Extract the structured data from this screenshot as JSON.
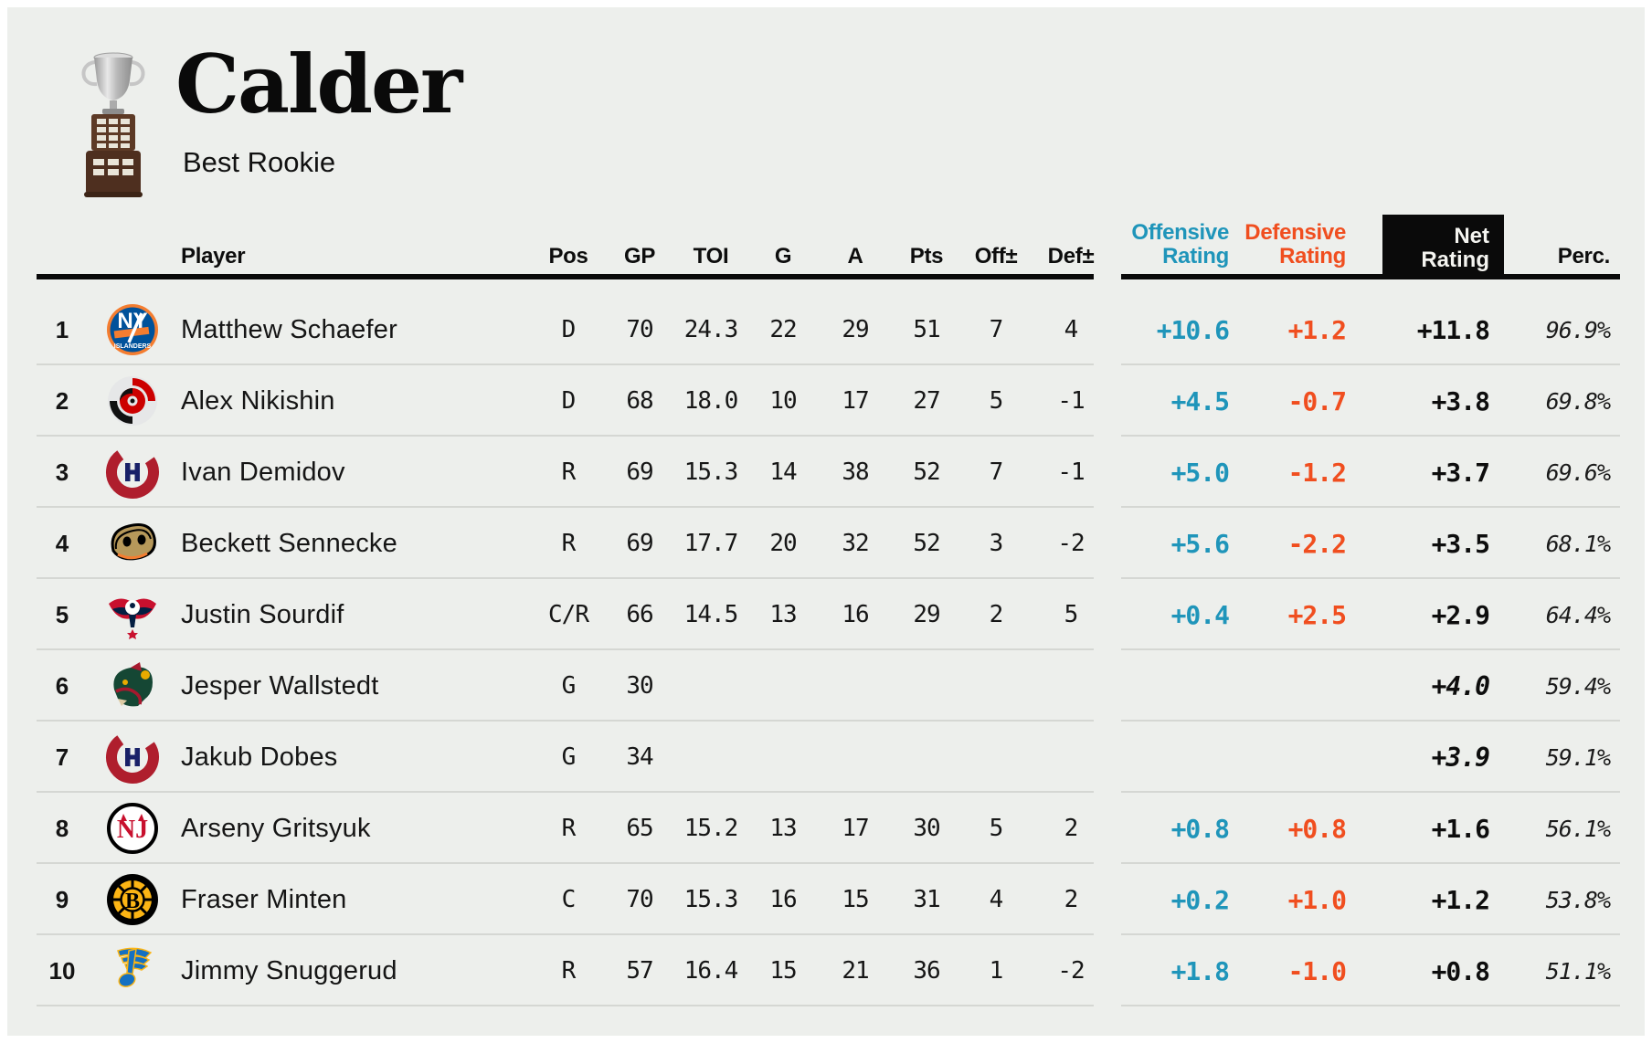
{
  "colors": {
    "background": "#edefec",
    "offensive_accent": "#1f95ba",
    "defensive_accent": "#f04e1f",
    "net_box_background": "#000000",
    "net_box_text": "#ffffff",
    "separator_line": "#d5d7d3"
  },
  "chart_data": {
    "type": "table",
    "title": "Calder",
    "subtitle": "Best Rookie",
    "trophy_icon": "calder-trophy-icon",
    "columns": [
      "Player",
      "Pos",
      "GP",
      "TOI",
      "G",
      "A",
      "Pts",
      "Off±",
      "Def±",
      "Offensive Rating",
      "Defensive Rating",
      "Net Rating",
      "Perc."
    ],
    "rows": [
      {
        "rank": "1",
        "team": "NYI",
        "player": "Matthew Schaefer",
        "pos": "D",
        "gp": "70",
        "toi": "24.3",
        "g": "22",
        "a": "29",
        "pts": "51",
        "off_pm": "7",
        "def_pm": "4",
        "off_rating": "+10.6",
        "def_rating": "+1.2",
        "net_rating": "+11.8",
        "perc": "96.9%",
        "goalie": false
      },
      {
        "rank": "2",
        "team": "CAR",
        "player": "Alex Nikishin",
        "pos": "D",
        "gp": "68",
        "toi": "18.0",
        "g": "10",
        "a": "17",
        "pts": "27",
        "off_pm": "5",
        "def_pm": "-1",
        "off_rating": "+4.5",
        "def_rating": "-0.7",
        "net_rating": "+3.8",
        "perc": "69.8%",
        "goalie": false
      },
      {
        "rank": "3",
        "team": "MTL",
        "player": "Ivan Demidov",
        "pos": "R",
        "gp": "69",
        "toi": "15.3",
        "g": "14",
        "a": "38",
        "pts": "52",
        "off_pm": "7",
        "def_pm": "-1",
        "off_rating": "+5.0",
        "def_rating": "-1.2",
        "net_rating": "+3.7",
        "perc": "69.6%",
        "goalie": false
      },
      {
        "rank": "4",
        "team": "ANA",
        "player": "Beckett Sennecke",
        "pos": "R",
        "gp": "69",
        "toi": "17.7",
        "g": "20",
        "a": "32",
        "pts": "52",
        "off_pm": "3",
        "def_pm": "-2",
        "off_rating": "+5.6",
        "def_rating": "-2.2",
        "net_rating": "+3.5",
        "perc": "68.1%",
        "goalie": false
      },
      {
        "rank": "5",
        "team": "WSH",
        "player": "Justin Sourdif",
        "pos": "C/R",
        "gp": "66",
        "toi": "14.5",
        "g": "13",
        "a": "16",
        "pts": "29",
        "off_pm": "2",
        "def_pm": "5",
        "off_rating": "+0.4",
        "def_rating": "+2.5",
        "net_rating": "+2.9",
        "perc": "64.4%",
        "goalie": false
      },
      {
        "rank": "6",
        "team": "MIN",
        "player": "Jesper Wallstedt",
        "pos": "G",
        "gp": "30",
        "toi": "",
        "g": "",
        "a": "",
        "pts": "",
        "off_pm": "",
        "def_pm": "",
        "off_rating": "",
        "def_rating": "",
        "net_rating": "+4.0",
        "perc": "59.4%",
        "goalie": true
      },
      {
        "rank": "7",
        "team": "MTL",
        "player": "Jakub Dobes",
        "pos": "G",
        "gp": "34",
        "toi": "",
        "g": "",
        "a": "",
        "pts": "",
        "off_pm": "",
        "def_pm": "",
        "off_rating": "",
        "def_rating": "",
        "net_rating": "+3.9",
        "perc": "59.1%",
        "goalie": true
      },
      {
        "rank": "8",
        "team": "NJD",
        "player": "Arseny Gritsyuk",
        "pos": "R",
        "gp": "65",
        "toi": "15.2",
        "g": "13",
        "a": "17",
        "pts": "30",
        "off_pm": "5",
        "def_pm": "2",
        "off_rating": "+0.8",
        "def_rating": "+0.8",
        "net_rating": "+1.6",
        "perc": "56.1%",
        "goalie": false
      },
      {
        "rank": "9",
        "team": "BOS",
        "player": "Fraser Minten",
        "pos": "C",
        "gp": "70",
        "toi": "15.3",
        "g": "16",
        "a": "15",
        "pts": "31",
        "off_pm": "4",
        "def_pm": "2",
        "off_rating": "+0.2",
        "def_rating": "+1.0",
        "net_rating": "+1.2",
        "perc": "53.8%",
        "goalie": false
      },
      {
        "rank": "10",
        "team": "STL",
        "player": "Jimmy Snuggerud",
        "pos": "R",
        "gp": "57",
        "toi": "16.4",
        "g": "15",
        "a": "21",
        "pts": "36",
        "off_pm": "1",
        "def_pm": "-2",
        "off_rating": "+1.8",
        "def_rating": "-1.0",
        "net_rating": "+0.8",
        "perc": "51.1%",
        "goalie": false
      }
    ]
  }
}
